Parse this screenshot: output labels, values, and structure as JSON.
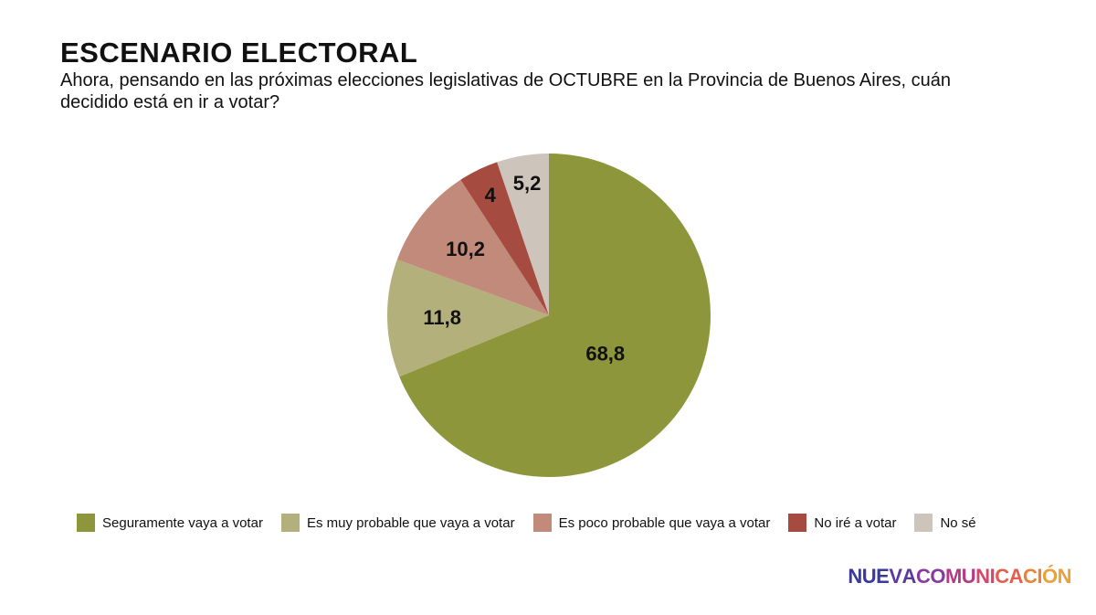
{
  "header": {
    "title": "ESCENARIO ELECTORAL",
    "subtitle": "Ahora, pensando en las próximas elecciones legislativas de OCTUBRE en la Provincia de Buenos Aires, cuán decidido está en ir a votar?"
  },
  "chart_data": {
    "type": "pie",
    "title": "ESCENARIO ELECTORAL",
    "legend_position": "bottom",
    "slices": [
      {
        "label": "Seguramente vaya a votar",
        "value": 68.8,
        "display": "68,8",
        "color": "#8e963c"
      },
      {
        "label": "Es muy probable que vaya a votar",
        "value": 11.8,
        "display": "11,8",
        "color": "#b4b07b"
      },
      {
        "label": "Es poco probable que vaya a votar",
        "value": 10.2,
        "display": "10,2",
        "color": "#c28a7a"
      },
      {
        "label": "No iré a votar",
        "value": 4,
        "display": "4",
        "color": "#a64b3f"
      },
      {
        "label": "No sé",
        "value": 5.2,
        "display": "5,2",
        "color": "#cdc4bc"
      }
    ]
  },
  "logo": {
    "text": "NUEVACOMUNICACIÓN",
    "colors": [
      "#3b3a9a",
      "#5b3aa0",
      "#8a3a9e",
      "#b23a86",
      "#d2476b",
      "#e25f4f",
      "#e8823c",
      "#e9a23a"
    ]
  }
}
